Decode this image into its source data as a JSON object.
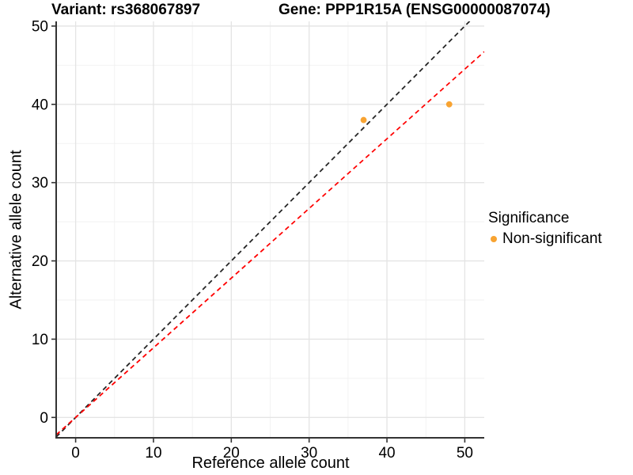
{
  "chart_data": {
    "type": "scatter",
    "titles": {
      "left": "Variant: rs368067897",
      "right": "Gene: PPP1R15A (ENSG00000087074)"
    },
    "xlabel": "Reference allele count",
    "ylabel": "Alternative allele count",
    "xlim": [
      -2.5,
      52.5
    ],
    "ylim": [
      -2.6,
      50.6
    ],
    "x_ticks": [
      0,
      10,
      20,
      30,
      40,
      50
    ],
    "y_ticks": [
      0,
      10,
      20,
      30,
      40,
      50
    ],
    "x_minor_ticks": [
      5,
      15,
      25,
      35,
      45
    ],
    "y_minor_ticks": [
      5,
      15,
      25,
      35,
      45
    ],
    "grid": "major and minor gridlines, light gray on white panel",
    "legend_position": "right",
    "series": [
      {
        "name": "Non-significant",
        "color": "#F8A331",
        "points": [
          {
            "x": 37,
            "y": 38
          },
          {
            "x": 48,
            "y": 40
          }
        ]
      }
    ],
    "reference_lines": [
      {
        "name": "identity-line",
        "slope": 1,
        "intercept": 0,
        "color": "#262626",
        "style": "dashed"
      },
      {
        "name": "ratio-line",
        "slope": 0.89,
        "intercept": 0,
        "color": "#FF0000",
        "style": "dashed"
      }
    ],
    "legend": {
      "title": "Significance",
      "items": [
        {
          "label": "Non-significant",
          "color": "#F8A331"
        }
      ]
    }
  },
  "colors": {
    "background": "#FFFFFF",
    "grid_major": "#E4E4E4",
    "grid_minor": "#F2F2F2",
    "axis_line": "#333333",
    "tick_text": "#000000"
  }
}
